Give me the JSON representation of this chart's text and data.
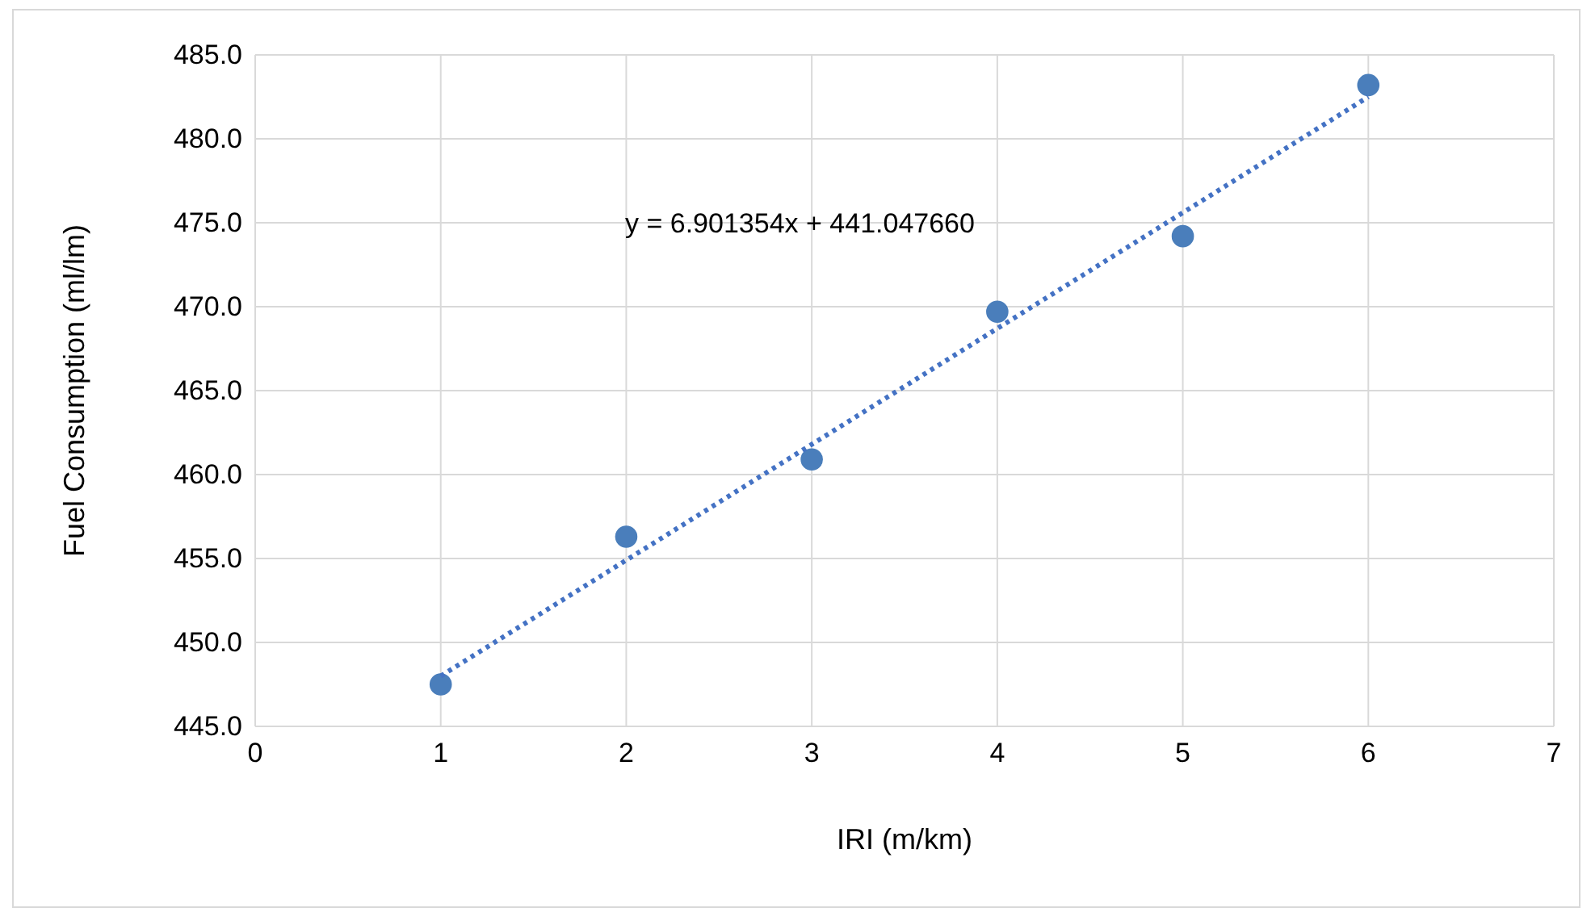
{
  "chart_data": {
    "type": "scatter",
    "xlabel": "IRI (m/km)",
    "ylabel": "Fuel Consumption (ml/lm)",
    "annotations": [
      "y = 6.901354x + 441.047660"
    ],
    "xlim": [
      0,
      7
    ],
    "xticks": [
      0,
      1,
      2,
      3,
      4,
      5,
      6,
      7
    ],
    "ylim": [
      445,
      485
    ],
    "yticks": [
      {
        "value": 445,
        "label": "445.0"
      },
      {
        "value": 450,
        "label": "450.0"
      },
      {
        "value": 455,
        "label": "455.0"
      },
      {
        "value": 460,
        "label": "460.0"
      },
      {
        "value": 465,
        "label": "465.0"
      },
      {
        "value": 470,
        "label": "470.0"
      },
      {
        "value": 475,
        "label": "475.0"
      },
      {
        "value": 480,
        "label": "480.0"
      },
      {
        "value": 485,
        "label": "485.0"
      }
    ],
    "grid": true,
    "marker": "circle",
    "series": [
      {
        "color": "#4a7ebb",
        "x": [
          1,
          2,
          3,
          4,
          5,
          6
        ],
        "values": [
          447.5,
          456.3,
          460.9,
          469.7,
          474.2,
          483.2
        ]
      },
      {
        "type": "line",
        "color": "#4472c4",
        "line_style": "dotted",
        "marker": "none",
        "x": [
          1,
          6
        ],
        "values": [
          448.0,
          482.5
        ]
      }
    ]
  }
}
